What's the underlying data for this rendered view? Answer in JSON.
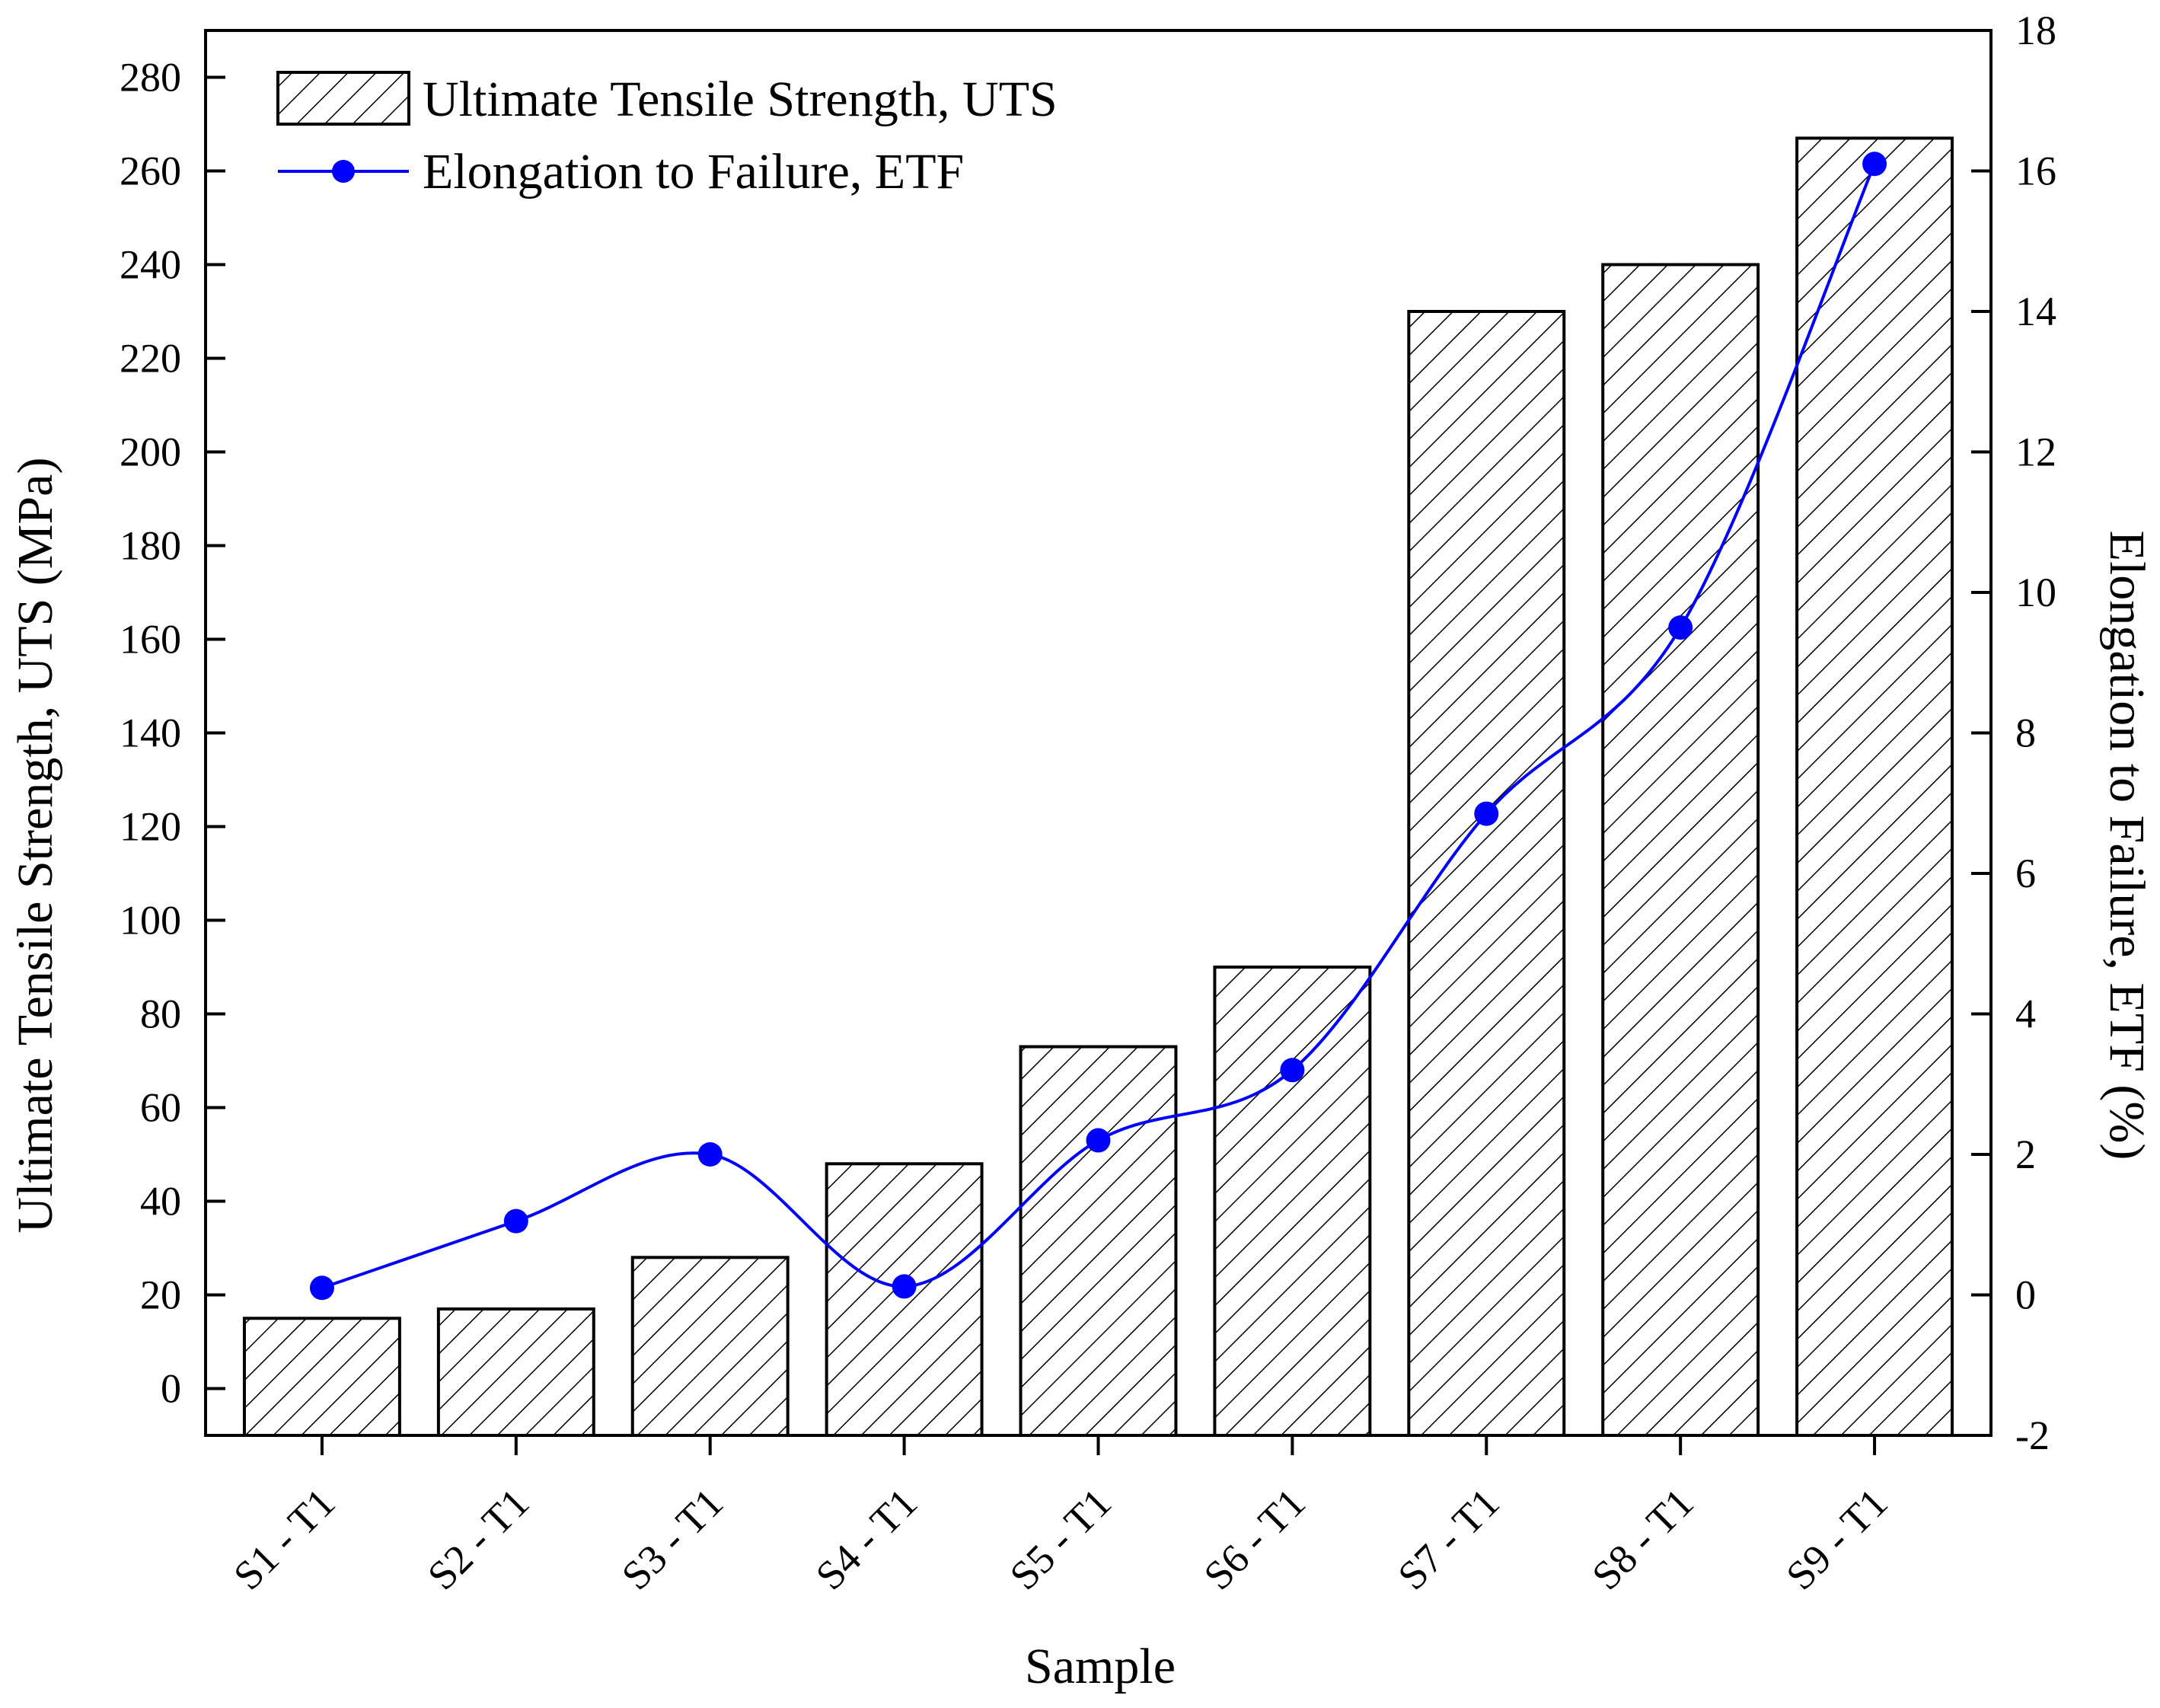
{
  "chart_data": {
    "type": "bar",
    "categories": [
      "S1 - T1",
      "S2 - T1",
      "S3 - T1",
      "S4 - T1",
      "S5 - T1",
      "S6 - T1",
      "S7 - T1",
      "S8 - T1",
      "S9 - T1"
    ],
    "series": [
      {
        "name": "Ultimate Tensile Strength, UTS",
        "type": "bar",
        "axis": "left",
        "values": [
          15,
          17,
          28,
          48,
          73,
          90,
          230,
          240,
          267
        ]
      },
      {
        "name": "Elongation to Failure, ETF",
        "type": "line",
        "axis": "right",
        "values": [
          0.1,
          1.05,
          2.0,
          0.12,
          2.2,
          3.2,
          6.85,
          9.5,
          16.1
        ]
      }
    ],
    "xlabel": "Sample",
    "ylabel_left": "Ultimate Tensile Strength, UTS (MPa)",
    "ylabel_right": "Elongation to Failure, ETF (%)",
    "ylim_left": [
      -10,
      290
    ],
    "yticks_left": [
      0,
      20,
      40,
      60,
      80,
      100,
      120,
      140,
      160,
      180,
      200,
      220,
      240,
      260,
      280
    ],
    "ylim_right": [
      -2,
      18
    ],
    "yticks_right": [
      -2,
      0,
      2,
      4,
      6,
      8,
      10,
      12,
      14,
      16,
      18
    ],
    "legend_position": "top-left",
    "bar_fill": "diagonal-hatch",
    "colors": {
      "bar_edge": "#000000",
      "line": "#0000ff",
      "marker": "#0000ff"
    },
    "grid": false
  }
}
